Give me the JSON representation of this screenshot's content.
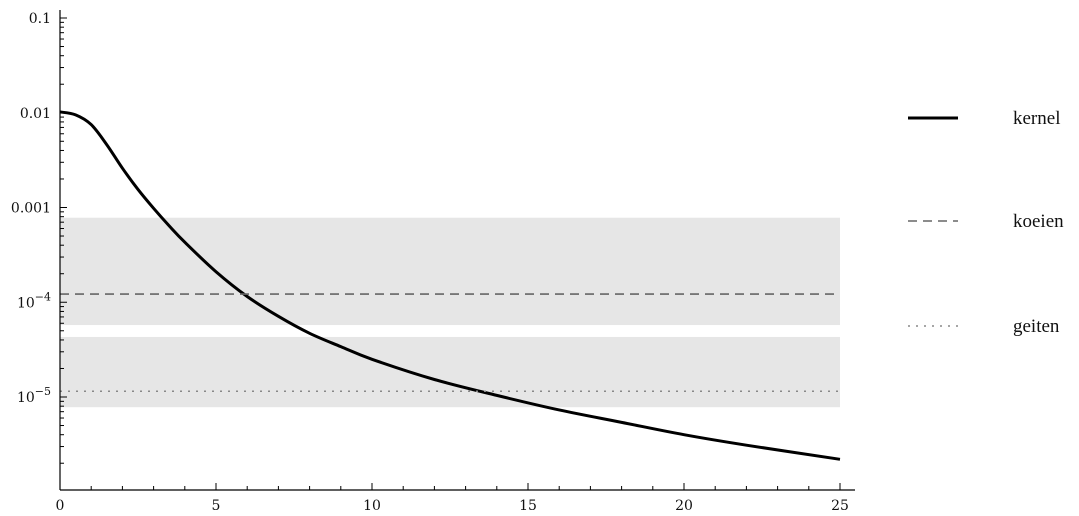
{
  "chart_data": {
    "type": "line",
    "title": "",
    "xlabel": "",
    "ylabel": "",
    "xlim": [
      0,
      25
    ],
    "ylim": [
      1.1e-06,
      0.1
    ],
    "yscale": "log",
    "grid": false,
    "legend_position": "right",
    "x_ticks": [
      0,
      5,
      10,
      15,
      20,
      25
    ],
    "x_tick_labels": [
      "0",
      "5",
      "10",
      "15",
      "20",
      "25"
    ],
    "y_ticks": [
      {
        "value": 0.1,
        "label": "0.1",
        "mant": "",
        "exp": ""
      },
      {
        "value": 0.01,
        "label": "0.01",
        "mant": "",
        "exp": ""
      },
      {
        "value": 0.001,
        "label": "0.001",
        "mant": "",
        "exp": ""
      },
      {
        "value": 0.0001,
        "label": "",
        "mant": "10",
        "exp": "−4"
      },
      {
        "value": 1e-05,
        "label": "",
        "mant": "10",
        "exp": "−5"
      }
    ],
    "series": [
      {
        "name": "kernel",
        "style": "solid",
        "color": "#000000",
        "x": [
          0,
          0.5,
          1,
          1.5,
          2,
          2.5,
          3,
          3.5,
          4,
          5,
          6,
          7,
          8,
          9,
          10,
          12,
          14,
          16,
          18,
          20,
          22,
          25
        ],
        "y": [
          0.0102,
          0.0095,
          0.0075,
          0.0046,
          0.0026,
          0.00155,
          0.00098,
          0.00064,
          0.00043,
          0.00021,
          0.000115,
          7.1e-05,
          4.7e-05,
          3.4e-05,
          2.5e-05,
          1.53e-05,
          1.04e-05,
          7.3e-06,
          5.4e-06,
          4e-06,
          3.1e-06,
          2.2e-06
        ]
      },
      {
        "name": "koeien",
        "style": "dashed",
        "color": "#666666",
        "x": [
          0,
          25
        ],
        "y": [
          0.000122,
          0.000122
        ],
        "band": [
          5.75e-05,
          0.00078
        ]
      },
      {
        "name": "geiten",
        "style": "dotted",
        "color": "#888888",
        "x": [
          0,
          25
        ],
        "y": [
          1.15e-05,
          1.15e-05
        ],
        "band": [
          7.8e-06,
          4.3e-05
        ]
      }
    ],
    "band_color": "#e6e6e6"
  }
}
